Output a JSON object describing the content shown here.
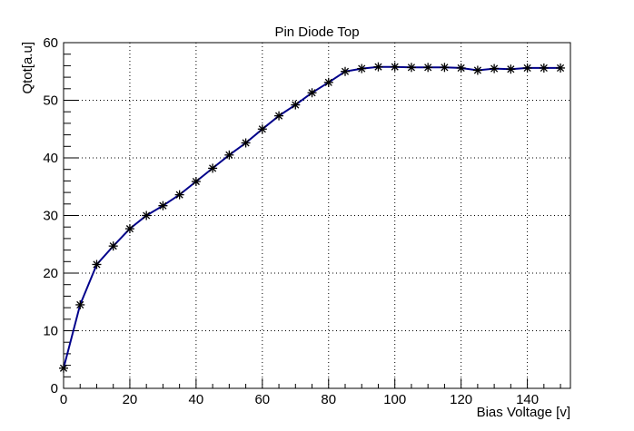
{
  "chart_data": {
    "type": "line",
    "title": "Pin Diode Top",
    "xlabel": "Bias Voltage [v]",
    "ylabel": "Qtot[a.u]",
    "xlim": [
      0,
      153
    ],
    "ylim": [
      0,
      60
    ],
    "xticks": [
      0,
      20,
      40,
      60,
      80,
      100,
      120,
      140
    ],
    "yticks": [
      0,
      10,
      20,
      30,
      40,
      50,
      60
    ],
    "grid": true,
    "line_color": "#00008b",
    "marker_color": "#000000",
    "marker": "star",
    "series": [
      {
        "x": [
          0,
          5,
          10,
          15,
          20,
          25,
          30,
          35,
          40,
          45,
          50,
          55,
          60,
          65,
          70,
          75,
          80,
          85,
          90,
          95,
          100,
          105,
          110,
          115,
          120,
          125,
          130,
          135,
          140,
          145,
          150
        ],
        "values": [
          3.5,
          14.5,
          21.5,
          24.7,
          27.7,
          30.0,
          31.7,
          33.6,
          35.9,
          38.2,
          40.5,
          42.6,
          45.0,
          47.3,
          49.2,
          51.3,
          53.1,
          55.0,
          55.5,
          55.8,
          55.8,
          55.7,
          55.7,
          55.7,
          55.6,
          55.2,
          55.5,
          55.4,
          55.6,
          55.6,
          55.6
        ]
      }
    ]
  }
}
